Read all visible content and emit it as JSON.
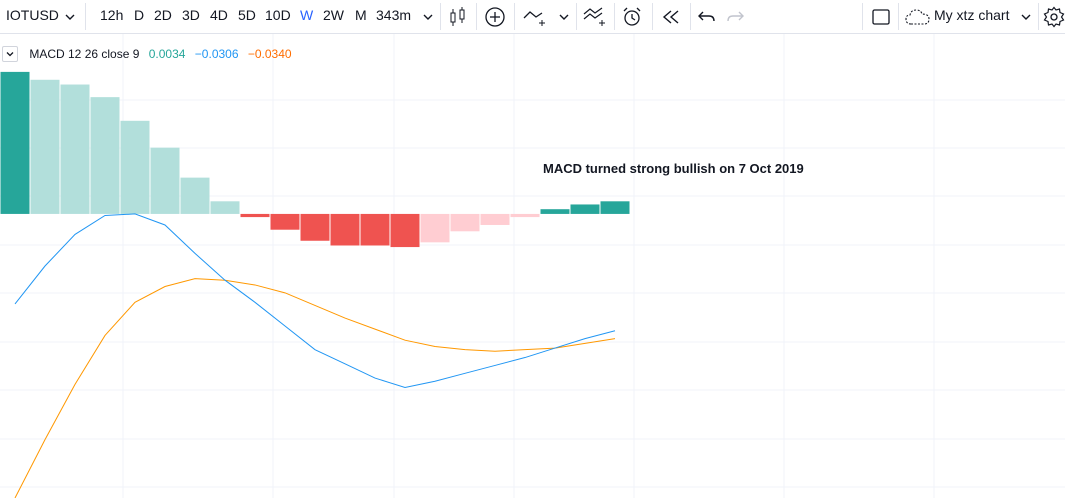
{
  "toolbar": {
    "symbol": "IOTUSD",
    "intervals": [
      "12h",
      "D",
      "2D",
      "3D",
      "4D",
      "5D",
      "10D",
      "W",
      "2W",
      "M",
      "343m"
    ],
    "active_interval": "W",
    "layout_name": "My xtz chart",
    "icons": [
      "chevron-down-icon",
      "candles-icon",
      "add-indicator-icon",
      "line-type-icon",
      "chevron-down-icon",
      "indicators-icon",
      "alert-clock-icon",
      "replay-icon",
      "undo-icon",
      "redo-icon",
      "fullscreen-icon",
      "cloud-icon",
      "settings-icon"
    ]
  },
  "legend": {
    "title": "MACD 12 26 close 9",
    "value1": "0.0034",
    "value2": "−0.0306",
    "value3": "−0.0340"
  },
  "annotation": "MACD turned strong bullish on 7 Oct 2019",
  "colors": {
    "positive_strong": "#26a69a",
    "positive_weak": "#b2dfdb",
    "negative_strong": "#ef5350",
    "negative_weak": "#ffcdd2",
    "macd_line": "#2196f3",
    "signal_line": "#ff9800",
    "legend_v1": "#26a69a",
    "legend_v2": "#2196f3",
    "legend_v3": "#ff6d00"
  },
  "chart_data": {
    "type": "bar",
    "histogram": [
      0.09,
      0.085,
      0.082,
      0.074,
      0.059,
      0.042,
      0.023,
      0.008,
      -0.002,
      -0.01,
      -0.017,
      -0.02,
      -0.02,
      -0.021,
      -0.018,
      -0.011,
      -0.007,
      -0.002,
      0.003,
      0.006,
      0.008
    ],
    "histogram_colors": [
      "positive_strong",
      "positive_weak",
      "positive_weak",
      "positive_weak",
      "positive_weak",
      "positive_weak",
      "positive_weak",
      "positive_weak",
      "negative_strong",
      "negative_strong",
      "negative_strong",
      "negative_strong",
      "negative_strong",
      "negative_strong",
      "negative_weak",
      "negative_weak",
      "negative_weak",
      "negative_weak",
      "positive_strong",
      "positive_strong",
      "positive_strong"
    ],
    "macd_line": [
      -0.057,
      -0.033,
      -0.013,
      -0.001,
      0.0,
      -0.007,
      -0.025,
      -0.042,
      -0.056,
      -0.071,
      -0.086,
      -0.095,
      -0.104,
      -0.11,
      -0.106,
      -0.101,
      -0.096,
      -0.091,
      -0.085,
      -0.079,
      -0.074
    ],
    "signal_line": [
      -0.18,
      -0.143,
      -0.108,
      -0.077,
      -0.056,
      -0.046,
      -0.041,
      -0.042,
      -0.045,
      -0.05,
      -0.058,
      -0.066,
      -0.073,
      -0.08,
      -0.084,
      -0.086,
      -0.087,
      -0.086,
      -0.085,
      -0.082,
      -0.079
    ],
    "ylim": [
      -0.18,
      0.095
    ]
  }
}
